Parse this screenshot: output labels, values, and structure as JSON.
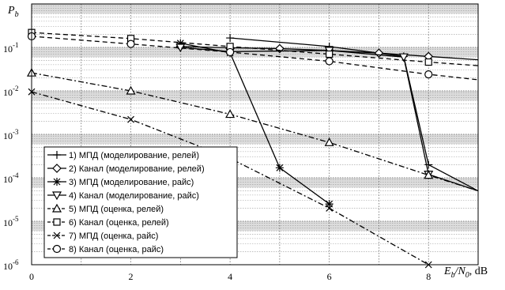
{
  "chart_data": {
    "type": "line",
    "title": "",
    "xlabel": "E_b/N_0, dB",
    "ylabel": "P_b",
    "xlabel_parts": {
      "main1": "E",
      "sub1": "b",
      "slash": "/N",
      "sub2": "0",
      "unit": ", dB"
    },
    "ylabel_parts": {
      "main": "P",
      "sub": "b"
    },
    "xlim": [
      0,
      9
    ],
    "ylim": [
      1e-06,
      1
    ],
    "yscale": "log",
    "grid": true,
    "legend_position": "lower-left",
    "x_ticks": [
      0,
      2,
      4,
      6,
      8
    ],
    "x_tick_labels": [
      "0",
      "2",
      "4",
      "6",
      "8"
    ],
    "y_ticks": [
      1e-06,
      1e-05,
      0.0001,
      0.001,
      0.01,
      0.1
    ],
    "y_tick_labels": [
      {
        "base": "10",
        "exp": "-6"
      },
      {
        "base": "10",
        "exp": "-5"
      },
      {
        "base": "10",
        "exp": "-4"
      },
      {
        "base": "10",
        "exp": "-3"
      },
      {
        "base": "10",
        "exp": "-2"
      },
      {
        "base": "10",
        "exp": "-1"
      }
    ],
    "series": [
      {
        "name": "1) МПД (моделирование, релей)",
        "marker": "plus",
        "dash": "solid",
        "x": [
          4,
          6,
          7.5,
          8,
          9
        ],
        "y": [
          0.165,
          0.105,
          0.062,
          0.0002,
          5e-05
        ]
      },
      {
        "name": "2) Канал (моделирование, релей)",
        "marker": "diamond",
        "dash": "solid",
        "x": [
          3,
          4,
          5,
          6,
          7,
          8,
          9
        ],
        "y": [
          0.105,
          0.098,
          0.094,
          0.085,
          0.074,
          0.062,
          0.052
        ]
      },
      {
        "name": "3) МПД (моделирование, райс)",
        "marker": "asterisk",
        "dash": "solid",
        "x": [
          3,
          4,
          5,
          6
        ],
        "y": [
          0.125,
          0.075,
          0.00017,
          2.5e-05
        ]
      },
      {
        "name": "4) Канал (моделирование, райс)",
        "marker": "tri-down",
        "dash": "solid",
        "x": [
          3,
          4,
          6,
          7.5,
          8,
          9
        ],
        "y": [
          0.1,
          0.08,
          0.085,
          0.06,
          0.00012,
          5e-05
        ]
      },
      {
        "name": "5) МПД (оценка, релей)",
        "marker": "tri-up",
        "dash": "dashdot",
        "x": [
          0,
          2,
          4,
          6,
          8,
          9
        ],
        "y": [
          0.026,
          0.01,
          0.0029,
          0.00065,
          0.000115,
          5e-05
        ]
      },
      {
        "name": "6) Канал (оценка, релей)",
        "marker": "square",
        "dash": "dashed",
        "x": [
          0,
          2,
          4,
          6,
          8,
          9
        ],
        "y": [
          0.22,
          0.16,
          0.105,
          0.07,
          0.046,
          0.038
        ]
      },
      {
        "name": "7) МПД (оценка, райс)",
        "marker": "x",
        "dash": "dashdot",
        "x": [
          0,
          2,
          4,
          6,
          8
        ],
        "y": [
          0.0095,
          0.0022,
          0.00028,
          2e-05,
          1e-06
        ]
      },
      {
        "name": "8) Канал (оценка, райс)",
        "marker": "circle",
        "dash": "dashed",
        "x": [
          0,
          2,
          4,
          6,
          8,
          9
        ],
        "y": [
          0.18,
          0.12,
          0.078,
          0.048,
          0.024,
          0.018
        ]
      }
    ],
    "colors": {
      "line": "#000000",
      "grid": "#9a9a9a",
      "band": "#dcdcdc",
      "background": "#ffffff"
    }
  }
}
